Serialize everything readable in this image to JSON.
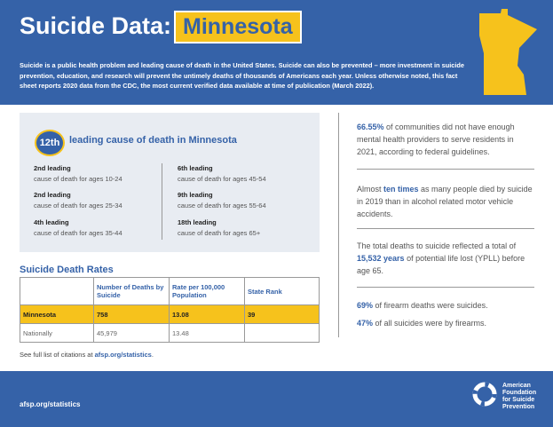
{
  "header": {
    "title": "Suicide Data:",
    "state": "Minnesota",
    "intro": "Suicide is a public health problem and leading cause of death in the United States. Suicide can also be prevented – more investment in suicide prevention, education, and research will prevent the untimely deaths of thousands of Americans each year. Unless otherwise noted, this fact sheet reports 2020 data from the CDC, the most current verified data available at time of publication (March 2022)."
  },
  "leading": {
    "rank": "12th",
    "label": "leading cause of death in Minnesota",
    "items": [
      {
        "rank": "2nd leading",
        "desc": "cause of death for ages 10-24"
      },
      {
        "rank": "2nd leading",
        "desc": "cause of death for ages 25-34"
      },
      {
        "rank": "4th leading",
        "desc": "cause of death for ages 35-44"
      },
      {
        "rank": "6th leading",
        "desc": "cause of death for ages 45-54"
      },
      {
        "rank": "9th leading",
        "desc": "cause of death for ages 55-64"
      },
      {
        "rank": "18th leading",
        "desc": "cause of death for ages 65+"
      }
    ]
  },
  "table": {
    "title": "Suicide Death Rates",
    "headers": [
      "Number of Deaths by Suicide",
      "Rate per 100,000 Population",
      "State Rank"
    ],
    "rows": [
      [
        "Minnesota",
        "758",
        "13.08",
        "39"
      ],
      [
        "Nationally",
        "45,979",
        "13.48"
      ]
    ]
  },
  "citation": [
    "See full list of citations at ",
    "afsp.org/statistics",
    "."
  ],
  "facts": [
    [
      "66.55%",
      " of communities did not have enough mental health providers to serve residents in 2021, according to federal guidelines."
    ],
    [
      "Almost ",
      "ten times",
      " as many people died by suicide in 2019 than in alcohol related motor vehicle accidents."
    ],
    [
      "The total deaths to suicide reflected a total of ",
      "15,532 years",
      " of potential life lost (YPLL) before age 65."
    ],
    [
      "69%",
      " of firearm deaths were suicides."
    ],
    [
      "47%",
      " of all suicides were by firearms."
    ]
  ],
  "footer": {
    "url": "afsp.org/statistics",
    "logo": [
      "American",
      "Foundation",
      "for Suicide",
      "Prevention"
    ]
  }
}
